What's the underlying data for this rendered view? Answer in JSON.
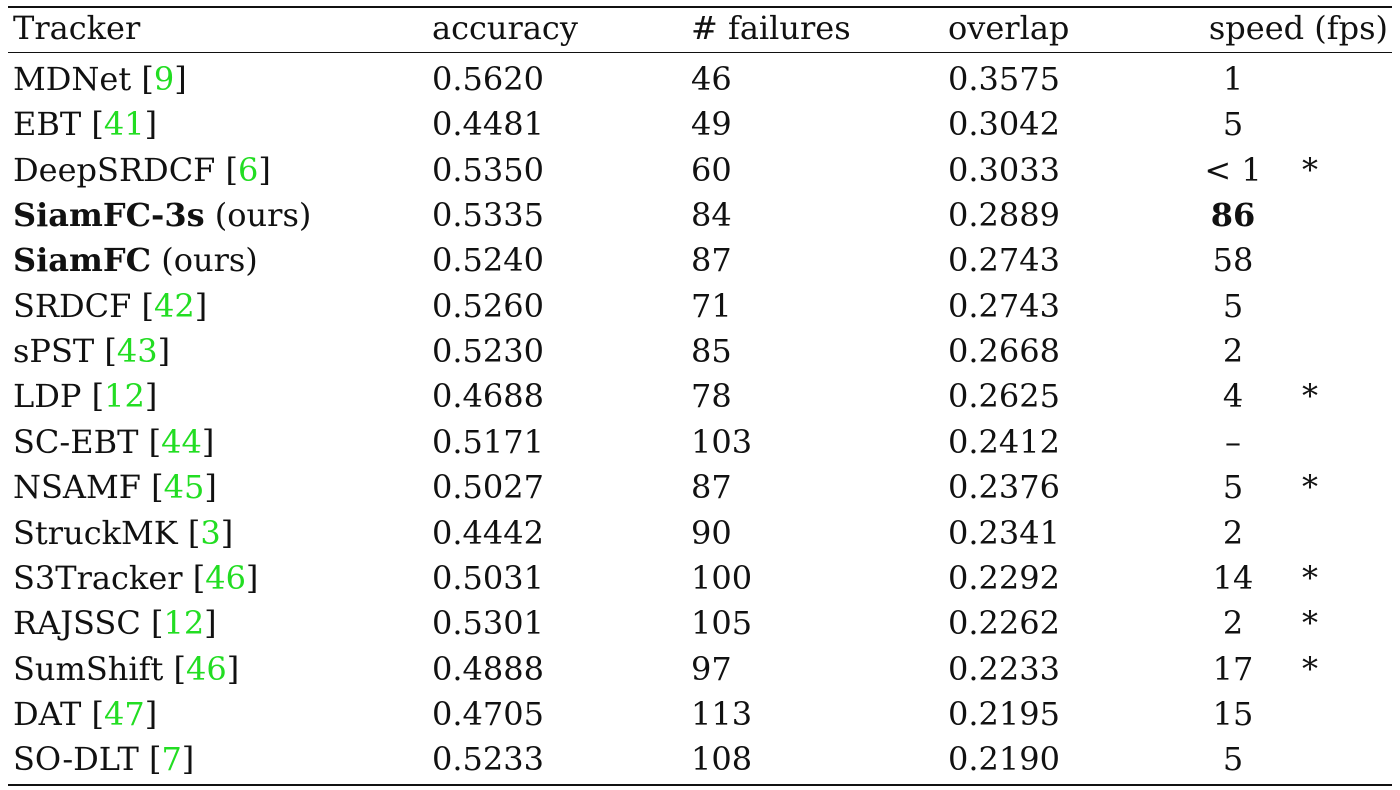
{
  "table": {
    "headers": {
      "tracker": "Tracker",
      "accuracy": "accuracy",
      "failures": "# failures",
      "overlap": "overlap",
      "speed": "speed (fps)"
    },
    "rows": [
      {
        "name": "MDNet",
        "cite": "9",
        "accuracy": "0.5620",
        "failures": "46",
        "overlap": "0.3575",
        "speed": "1",
        "star": ""
      },
      {
        "name": "EBT",
        "cite": "41",
        "accuracy": "0.4481",
        "failures": "49",
        "overlap": "0.3042",
        "speed": "5",
        "star": ""
      },
      {
        "name": "DeepSRDCF",
        "cite": "6",
        "accuracy": "0.5350",
        "failures": "60",
        "overlap": "0.3033",
        "speed": "< 1",
        "star": "*"
      },
      {
        "name": "SiamFC-3s",
        "suffix": "(ours)",
        "accuracy": "0.5335",
        "failures": "84",
        "overlap": "0.2889",
        "speed": "86",
        "star": ""
      },
      {
        "name": "SiamFC",
        "suffix": "(ours)",
        "accuracy": "0.5240",
        "failures": "87",
        "overlap": "0.2743",
        "speed": "58",
        "star": ""
      },
      {
        "name": "SRDCF",
        "cite": "42",
        "accuracy": "0.5260",
        "failures": "71",
        "overlap": "0.2743",
        "speed": "5",
        "star": ""
      },
      {
        "name": "sPST",
        "cite": "43",
        "accuracy": "0.5230",
        "failures": "85",
        "overlap": "0.2668",
        "speed": "2",
        "star": ""
      },
      {
        "name": "LDP",
        "cite": "12",
        "accuracy": "0.4688",
        "failures": "78",
        "overlap": "0.2625",
        "speed": "4",
        "star": "*"
      },
      {
        "name": "SC-EBT",
        "cite": "44",
        "accuracy": "0.5171",
        "failures": "103",
        "overlap": "0.2412",
        "speed": "–",
        "star": ""
      },
      {
        "name": "NSAMF",
        "cite": "45",
        "accuracy": "0.5027",
        "failures": "87",
        "overlap": "0.2376",
        "speed": "5",
        "star": "*"
      },
      {
        "name": "StruckMK",
        "cite": "3",
        "accuracy": "0.4442",
        "failures": "90",
        "overlap": "0.2341",
        "speed": "2",
        "star": ""
      },
      {
        "name": "S3Tracker",
        "cite": "46",
        "accuracy": "0.5031",
        "failures": "100",
        "overlap": "0.2292",
        "speed": "14",
        "star": "*"
      },
      {
        "name": "RAJSSC",
        "cite": "12",
        "accuracy": "0.5301",
        "failures": "105",
        "overlap": "0.2262",
        "speed": "2",
        "star": "*"
      },
      {
        "name": "SumShift",
        "cite": "46",
        "accuracy": "0.4888",
        "failures": "97",
        "overlap": "0.2233",
        "speed": "17",
        "star": "*"
      },
      {
        "name": "DAT",
        "cite": "47",
        "accuracy": "0.4705",
        "failures": "113",
        "overlap": "0.2195",
        "speed": "15",
        "star": ""
      },
      {
        "name": "SO-DLT",
        "cite": "7",
        "accuracy": "0.5233",
        "failures": "108",
        "overlap": "0.2190",
        "speed": "5",
        "star": ""
      }
    ],
    "bold_rows": [
      3,
      4
    ],
    "bold_speed_rows": [
      3
    ],
    "cite_color": "#22dd22"
  }
}
